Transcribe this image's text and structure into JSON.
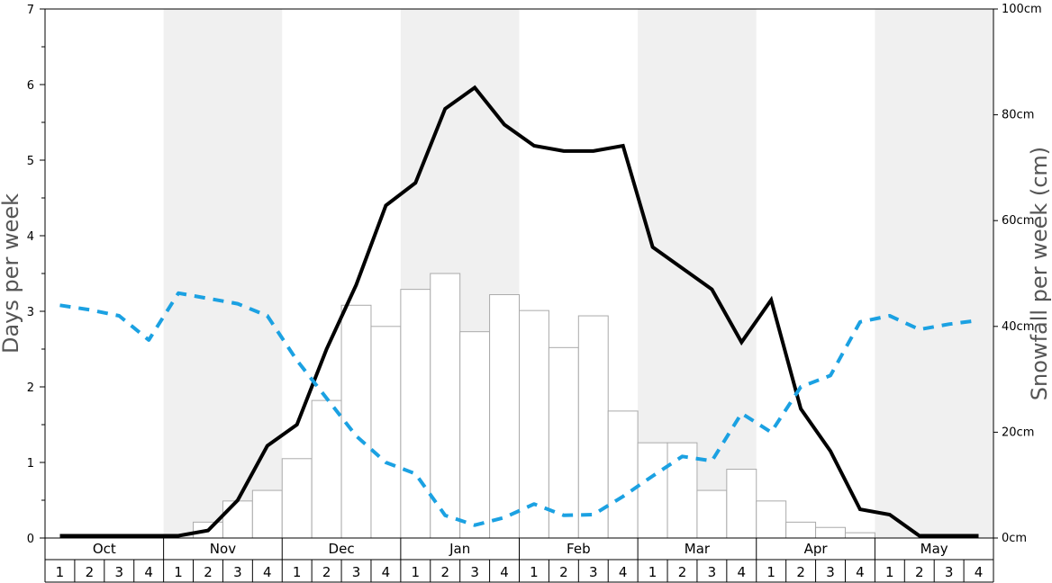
{
  "chart_data": {
    "type": "bar",
    "ylabel_left": "Days per week",
    "ylabel_right": "Snowfall per week (cm)",
    "ylim_left": [
      0,
      7
    ],
    "ylim_right": [
      0,
      100
    ],
    "left_ticks": [
      "0",
      "1",
      "2",
      "3",
      "4",
      "5",
      "6",
      "7"
    ],
    "right_ticks": [
      "0cm",
      "20cm",
      "40cm",
      "60cm",
      "80cm",
      "100cm"
    ],
    "months": [
      "Oct",
      "Nov",
      "Dec",
      "Jan",
      "Feb",
      "Mar",
      "Apr",
      "May"
    ],
    "week_labels": [
      "1",
      "2",
      "3",
      "4"
    ],
    "shaded_months": [
      "Nov",
      "Jan",
      "Mar",
      "May"
    ],
    "colors": {
      "shade": "#f0f0f0",
      "bar_fill": "#ffffff",
      "bar_stroke": "#aaaaaa",
      "snow_days_line": "#000000",
      "sun_days_line": "#1ba1e2"
    },
    "series": [
      {
        "kind": "bar",
        "axis": "right",
        "values": [
          0,
          0,
          0,
          0,
          0,
          3,
          7,
          9,
          15,
          26,
          44,
          40,
          47,
          50,
          39,
          46,
          43,
          36,
          42,
          24,
          18,
          18,
          9,
          13,
          7,
          3,
          2,
          1,
          0,
          0,
          0,
          0
        ]
      },
      {
        "kind": "line",
        "style": "solid",
        "axis": "left",
        "values": [
          0.03,
          0.03,
          0.03,
          0.03,
          0.03,
          0.1,
          0.5,
          1.22,
          1.5,
          2.5,
          3.35,
          4.4,
          4.7,
          5.68,
          5.96,
          5.47,
          5.19,
          5.12,
          5.12,
          5.19,
          3.85,
          3.57,
          3.29,
          2.59,
          3.15,
          1.71,
          1.15,
          0.38,
          0.31,
          0.03,
          0.03,
          0.03
        ]
      },
      {
        "kind": "line",
        "style": "dashed",
        "axis": "left",
        "values": [
          3.08,
          3.02,
          2.94,
          2.62,
          3.24,
          3.17,
          3.1,
          2.94,
          2.35,
          1.85,
          1.35,
          1.0,
          0.85,
          0.3,
          0.17,
          0.27,
          0.45,
          0.3,
          0.31,
          0.55,
          0.82,
          1.08,
          1.02,
          1.65,
          1.4,
          2.0,
          2.15,
          2.86,
          2.94,
          2.76,
          2.83,
          2.88
        ]
      }
    ]
  }
}
